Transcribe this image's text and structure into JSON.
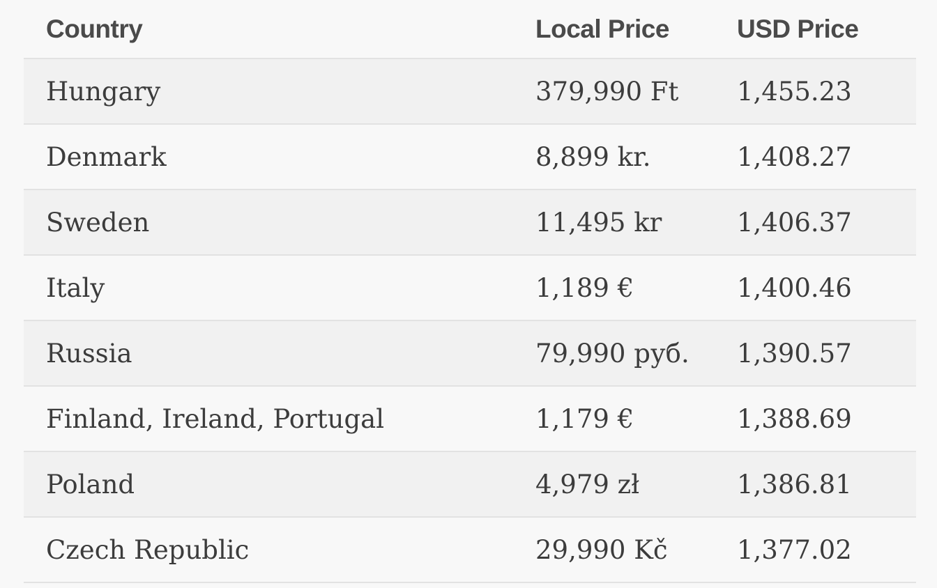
{
  "table": {
    "headers": {
      "country": "Country",
      "local_price": "Local Price",
      "usd_price": "USD Price"
    },
    "rows": [
      {
        "country": "Hungary",
        "local_price": "379,990 Ft",
        "usd_price": "1,455.23"
      },
      {
        "country": "Denmark",
        "local_price": "8,899 kr.",
        "usd_price": "1,408.27"
      },
      {
        "country": "Sweden",
        "local_price": "11,495 kr",
        "usd_price": "1,406.37"
      },
      {
        "country": "Italy",
        "local_price": "1,189 €",
        "usd_price": "1,400.46"
      },
      {
        "country": "Russia",
        "local_price": "79,990 руб.",
        "usd_price": "1,390.57"
      },
      {
        "country": "Finland, Ireland, Portugal",
        "local_price": "1,179 €",
        "usd_price": "1,388.69"
      },
      {
        "country": "Poland",
        "local_price": "4,979 zł",
        "usd_price": "1,386.81"
      },
      {
        "country": "Czech Republic",
        "local_price": "29,990 Kč",
        "usd_price": "1,377.02"
      }
    ]
  }
}
